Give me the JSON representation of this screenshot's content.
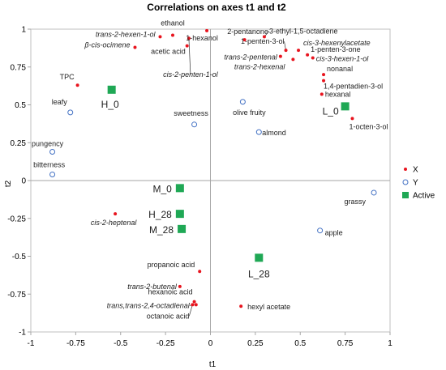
{
  "chart_data": {
    "type": "scatter",
    "title": "Correlations on axes t1 and t2",
    "xlabel": "t1",
    "ylabel": "t2",
    "xlim": [
      -1,
      1
    ],
    "ylim": [
      -1,
      1
    ],
    "xticks": [
      "-1",
      "-0.75",
      "-0.5",
      "-0.25",
      "0",
      "0.25",
      "0.5",
      "0.75",
      "1"
    ],
    "yticks": [
      "1",
      "0.75",
      "0.5",
      "0.25",
      "0",
      "-0.25",
      "-0.5",
      "-0.75",
      "-1"
    ],
    "legend": {
      "position": "right",
      "entries": [
        {
          "name": "X",
          "color": "#e8141e",
          "marker": "x-dot"
        },
        {
          "name": "Y",
          "color": "#4472c4",
          "marker": "circle-open"
        },
        {
          "name": "Active",
          "color": "#1fa855",
          "marker": "square"
        }
      ]
    },
    "series": [
      {
        "name": "X",
        "color": "#e8141e",
        "points": [
          {
            "label": "ethanol",
            "x": -0.21,
            "y": 0.96
          },
          {
            "label": "trans-2-hexen-1-ol",
            "x": -0.28,
            "y": 0.95
          },
          {
            "label": "β-cis-ocimene",
            "x": -0.42,
            "y": 0.88
          },
          {
            "label": "1-hexanol",
            "x": -0.02,
            "y": 0.99
          },
          {
            "label": "acetic acid",
            "x": -0.13,
            "y": 0.89
          },
          {
            "label": "cis-2-penten-1-ol",
            "x": -0.12,
            "y": 0.94
          },
          {
            "label": "TPC",
            "x": -0.74,
            "y": 0.63
          },
          {
            "label": "2-pentanone",
            "x": 0.19,
            "y": 0.93
          },
          {
            "label": "3-ethyl-1,5-octadiene",
            "x": 0.3,
            "y": 0.95
          },
          {
            "label": "cis-3-hexenylacetate",
            "x": 0.49,
            "y": 0.86
          },
          {
            "label": "1-penten-3-ol",
            "x": 0.42,
            "y": 0.86
          },
          {
            "label": "1-penten-3-one",
            "x": 0.54,
            "y": 0.83
          },
          {
            "label": "cis-3-hexen-1-ol",
            "x": 0.57,
            "y": 0.81
          },
          {
            "label": "trans-2-pentenal",
            "x": 0.39,
            "y": 0.82
          },
          {
            "label": "trans-2-hexenal",
            "x": 0.46,
            "y": 0.8
          },
          {
            "label": "nonanal",
            "x": 0.63,
            "y": 0.7
          },
          {
            "label": "1,4-pentadien-3-ol",
            "x": 0.63,
            "y": 0.66
          },
          {
            "label": "hexanal",
            "x": 0.62,
            "y": 0.57
          },
          {
            "label": "1-octen-3-ol",
            "x": 0.79,
            "y": 0.41
          },
          {
            "label": "cis-2-heptenal",
            "x": -0.53,
            "y": -0.22
          },
          {
            "label": "propanoic acid",
            "x": -0.06,
            "y": -0.6
          },
          {
            "label": "trans-2-butenal",
            "x": -0.17,
            "y": -0.7
          },
          {
            "label": "hexanoic acid",
            "x": -0.09,
            "y": -0.8
          },
          {
            "label": "trans,trans-2,4-octadienal",
            "x": -0.08,
            "y": -0.82
          },
          {
            "label": "octanoic acid",
            "x": -0.1,
            "y": -0.82
          },
          {
            "label": "hexyl acetate",
            "x": 0.17,
            "y": -0.83
          }
        ]
      },
      {
        "name": "Y",
        "color": "#4472c4",
        "points": [
          {
            "label": "leafy",
            "x": -0.78,
            "y": 0.45
          },
          {
            "label": "pungency",
            "x": -0.88,
            "y": 0.19
          },
          {
            "label": "bitterness",
            "x": -0.88,
            "y": 0.04
          },
          {
            "label": "sweetness",
            "x": -0.09,
            "y": 0.37
          },
          {
            "label": "olive fruity",
            "x": 0.18,
            "y": 0.52
          },
          {
            "label": "almond",
            "x": 0.27,
            "y": 0.32
          },
          {
            "label": "grassy",
            "x": 0.91,
            "y": -0.08
          },
          {
            "label": "apple",
            "x": 0.61,
            "y": -0.33
          }
        ]
      },
      {
        "name": "Active",
        "color": "#1fa855",
        "points": [
          {
            "label": "H_0",
            "x": -0.55,
            "y": 0.6
          },
          {
            "label": "L_0",
            "x": 0.75,
            "y": 0.49
          },
          {
            "label": "M_0",
            "x": -0.17,
            "y": -0.05
          },
          {
            "label": "H_28",
            "x": -0.17,
            "y": -0.22
          },
          {
            "label": "M_28",
            "x": -0.16,
            "y": -0.32
          },
          {
            "label": "L_28",
            "x": 0.27,
            "y": -0.51
          }
        ]
      }
    ]
  }
}
